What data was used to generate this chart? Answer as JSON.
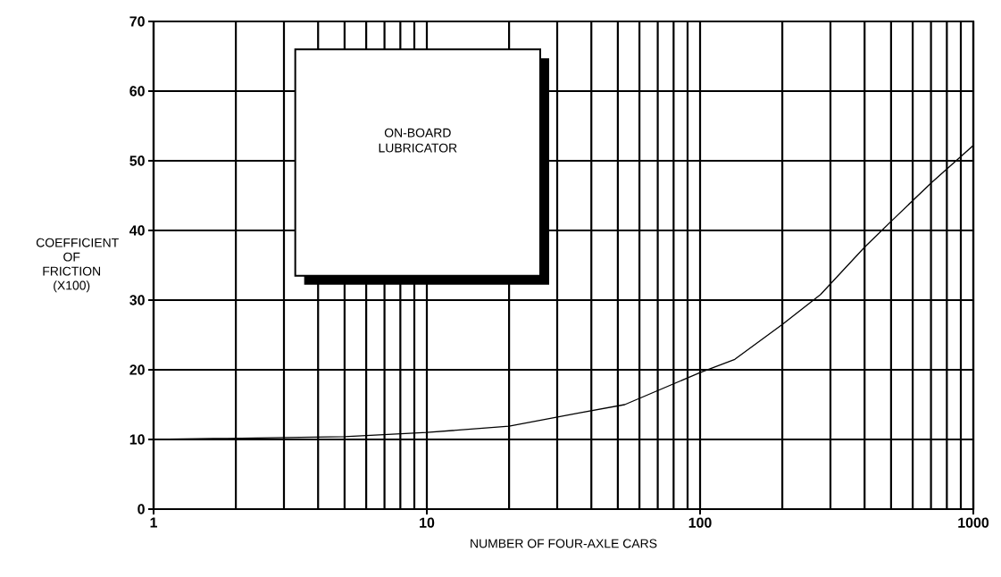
{
  "chart_data": {
    "type": "line",
    "xlabel": "NUMBER OF FOUR-AXLE CARS",
    "ylabel": "COEFFICIENT OF FRICTION (X100)",
    "annotations": [
      "ON-BOARD LUBRICATOR"
    ],
    "x": [
      1,
      5,
      10,
      20,
      36,
      53,
      100,
      134,
      200,
      276,
      400,
      500,
      700,
      1000
    ],
    "series": [
      {
        "color": "#000000",
        "values": [
          10,
          10.4,
          11,
          11.9,
          13.8,
          15,
          19.6,
          21.5,
          26.5,
          30.8,
          37.6,
          41.3,
          46.8,
          52.2
        ]
      }
    ],
    "log": "x",
    "xlim": [
      1,
      1000
    ],
    "xticks": [
      1,
      10,
      100,
      1000
    ],
    "ylim": [
      0,
      70
    ],
    "yticks": [
      0,
      10,
      20,
      30,
      40,
      50,
      60,
      70
    ],
    "grid": true,
    "marker": "none",
    "line_style": "solid"
  }
}
